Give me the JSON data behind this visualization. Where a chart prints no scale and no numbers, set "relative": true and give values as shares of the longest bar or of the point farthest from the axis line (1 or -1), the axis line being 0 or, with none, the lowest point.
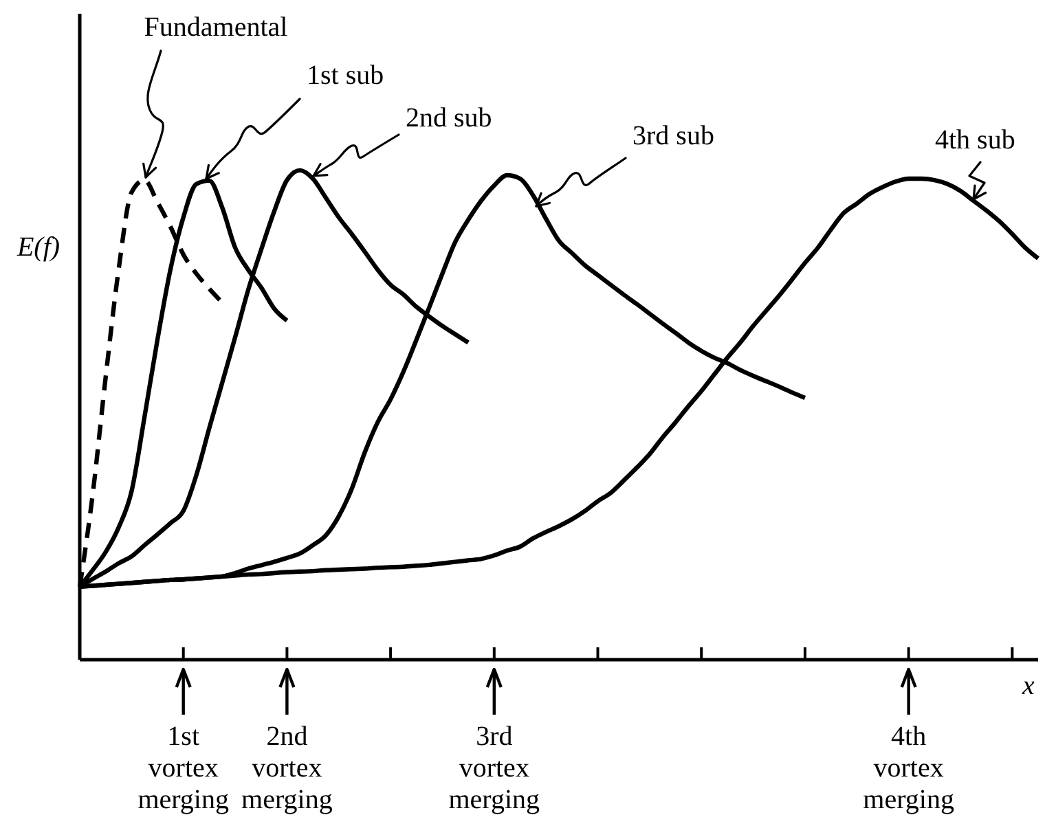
{
  "chart_data": {
    "type": "line",
    "relative": true,
    "xlabel": "x",
    "ylabel": "E(f)",
    "marker": "none",
    "line_style": "solid",
    "categories": [
      null,
      null,
      null,
      null,
      null,
      null,
      null,
      null,
      null,
      null,
      null,
      null,
      null,
      null,
      null,
      null,
      null,
      null,
      null,
      null,
      null,
      null,
      null,
      null,
      null,
      null,
      null,
      null,
      null,
      null,
      null,
      null,
      null,
      null,
      null,
      null,
      null,
      null,
      null,
      null,
      null,
      null,
      null,
      null,
      null,
      null,
      null,
      null,
      null,
      null,
      null,
      null,
      null,
      null,
      null,
      null,
      null,
      null,
      null,
      null,
      null,
      null,
      null,
      null,
      null,
      null,
      null,
      null,
      null,
      null,
      null,
      null,
      null,
      null,
      null
    ],
    "series": [
      {
        "name": "Fundamental",
        "color": "#000000",
        "line_style": "dashed",
        "values": [
          0.149,
          0.338,
          0.577,
          0.797,
          0.955,
          0.98,
          0.935,
          0.885,
          0.828,
          0.789,
          0.758,
          0.73,
          null,
          null,
          null,
          null,
          null,
          null,
          null,
          null,
          null,
          null,
          null,
          null,
          null,
          null,
          null,
          null,
          null,
          null,
          null,
          null,
          null,
          null,
          null,
          null,
          null,
          null,
          null,
          null,
          null,
          null,
          null,
          null,
          null,
          null,
          null,
          null,
          null,
          null,
          null,
          null,
          null,
          null,
          null,
          null,
          null,
          null,
          null,
          null,
          null,
          null,
          null,
          null,
          null,
          null,
          null,
          null,
          null,
          null,
          null,
          null,
          null,
          null,
          null
        ]
      },
      {
        "name": "1st sub",
        "color": "#000000",
        "values": [
          0.149,
          0.183,
          0.22,
          0.27,
          0.344,
          0.496,
          0.654,
          0.797,
          0.904,
          0.972,
          0.979,
          0.924,
          0.842,
          0.797,
          0.761,
          0.718,
          0.693,
          null,
          null,
          null,
          null,
          null,
          null,
          null,
          null,
          null,
          null,
          null,
          null,
          null,
          null,
          null,
          null,
          null,
          null,
          null,
          null,
          null,
          null,
          null,
          null,
          null,
          null,
          null,
          null,
          null,
          null,
          null,
          null,
          null,
          null,
          null,
          null,
          null,
          null,
          null,
          null,
          null,
          null,
          null,
          null,
          null,
          null,
          null,
          null,
          null,
          null,
          null,
          null,
          null,
          null,
          null,
          null,
          null,
          null
        ]
      },
      {
        "name": "2nd sub",
        "color": "#000000",
        "values": [
          0.149,
          0.165,
          0.18,
          0.197,
          0.211,
          0.234,
          0.256,
          0.279,
          0.304,
          0.377,
          0.473,
          0.566,
          0.659,
          0.755,
          0.837,
          0.915,
          0.98,
          1,
          0.983,
          0.944,
          0.904,
          0.87,
          0.834,
          0.797,
          0.766,
          0.746,
          0.721,
          0.701,
          0.682,
          0.665,
          0.648,
          null,
          null,
          null,
          null,
          null,
          null,
          null,
          null,
          null,
          null,
          null,
          null,
          null,
          null,
          null,
          null,
          null,
          null,
          null,
          null,
          null,
          null,
          null,
          null,
          null,
          null,
          null,
          null,
          null,
          null,
          null,
          null,
          null,
          null,
          null,
          null,
          null,
          null,
          null,
          null,
          null,
          null,
          null,
          null
        ]
      },
      {
        "name": "3rd sub",
        "color": "#000000",
        "values": [
          0.149,
          0.151,
          0.153,
          0.155,
          0.157,
          0.159,
          0.161,
          0.163,
          0.164,
          0.166,
          0.168,
          0.17,
          0.177,
          0.186,
          0.193,
          0.2,
          0.208,
          0.217,
          0.234,
          0.254,
          0.293,
          0.349,
          0.423,
          0.485,
          0.532,
          0.589,
          0.654,
          0.721,
          0.789,
          0.854,
          0.899,
          0.938,
          0.969,
          0.99,
          0.983,
          0.949,
          0.901,
          0.856,
          0.831,
          0.806,
          0.786,
          0.766,
          0.746,
          0.727,
          0.707,
          0.687,
          0.668,
          0.648,
          0.631,
          0.617,
          0.606,
          0.592,
          0.58,
          0.569,
          0.558,
          0.546,
          0.535,
          null,
          null,
          null,
          null,
          null,
          null,
          null,
          null,
          null,
          null,
          null,
          null,
          null,
          null,
          null,
          null,
          null,
          null
        ]
      },
      {
        "name": "4th sub",
        "color": "#000000",
        "values": [
          0.149,
          0.151,
          0.153,
          0.155,
          0.157,
          0.159,
          0.161,
          0.163,
          0.164,
          0.166,
          0.168,
          0.17,
          0.172,
          0.174,
          0.175,
          0.177,
          0.179,
          0.18,
          0.181,
          0.183,
          0.184,
          0.185,
          0.186,
          0.188,
          0.189,
          0.19,
          0.192,
          0.194,
          0.197,
          0.2,
          0.203,
          0.206,
          0.213,
          0.223,
          0.231,
          0.248,
          0.261,
          0.273,
          0.287,
          0.304,
          0.324,
          0.341,
          0.366,
          0.392,
          0.42,
          0.454,
          0.485,
          0.518,
          0.549,
          0.583,
          0.617,
          0.648,
          0.682,
          0.713,
          0.744,
          0.777,
          0.811,
          0.842,
          0.879,
          0.913,
          0.932,
          0.952,
          0.966,
          0.977,
          0.983,
          0.983,
          0.98,
          0.972,
          0.958,
          0.938,
          0.918,
          0.896,
          0.87,
          0.842,
          0.82
        ]
      }
    ],
    "annotations": [
      "1st vortex merging",
      "2nd vortex merging",
      "3rd vortex merging",
      "4th vortex merging"
    ]
  }
}
